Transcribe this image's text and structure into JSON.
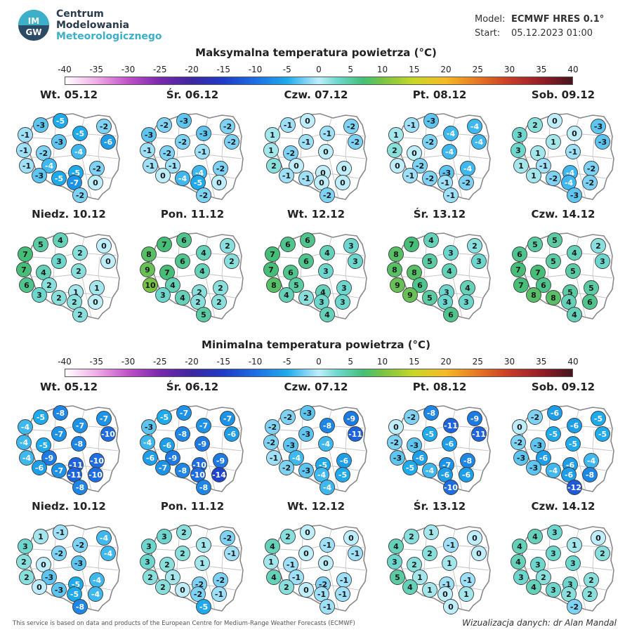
{
  "header": {
    "org_line1": "Centrum",
    "org_line2": "Modelowania",
    "org_line3": "Meteorologicznego",
    "logo_text_top": "IM",
    "logo_text_bottom": "GW",
    "model_label": "Model:",
    "model_value": "ECMWF HRES 0.1°",
    "start_label": "Start:",
    "start_value": "05.12.2023 01:00"
  },
  "scale_ticks": [
    "-40",
    "-35",
    "-30",
    "-25",
    "-20",
    "-15",
    "-10",
    "-5",
    "0",
    "5",
    "10",
    "15",
    "20",
    "25",
    "30",
    "35",
    "40"
  ],
  "max_section": {
    "title": "Maksymalna temperatura powietrza (°C)",
    "days": [
      {
        "title": "Wt. 05.12",
        "values": [
          -3,
          -5,
          -2,
          -1,
          -3,
          -5,
          -6,
          -1,
          -2,
          -4,
          -1,
          -4,
          -5,
          -2,
          -3,
          -5,
          -7,
          0,
          -2
        ]
      },
      {
        "title": "Śr. 06.12",
        "values": [
          -2,
          -3,
          -2,
          -3,
          -2,
          -3,
          -2,
          -1,
          -2,
          -1,
          -1,
          -1,
          -4,
          -2,
          0,
          -4,
          -5,
          0,
          -2
        ]
      },
      {
        "title": "Czw. 07.12",
        "values": [
          -1,
          0,
          -2,
          1,
          -1,
          -1,
          -2,
          1,
          -2,
          0,
          2,
          0,
          0,
          0,
          -1,
          -1,
          0,
          0,
          -2
        ]
      },
      {
        "title": "Pt. 08.12",
        "values": [
          -1,
          -3,
          -4,
          1,
          -2,
          -4,
          -4,
          2,
          0,
          -4,
          0,
          -2,
          -3,
          -4,
          -1,
          -2,
          -1,
          -2,
          -1
        ]
      },
      {
        "title": "Sob. 09.12",
        "values": [
          2,
          0,
          -3,
          3,
          1,
          0,
          -3,
          3,
          1,
          -1,
          1,
          -1,
          -4,
          -2,
          1,
          -2,
          -4,
          -2,
          -3
        ]
      },
      {
        "title": "Niedz. 10.12",
        "values": [
          5,
          4,
          0,
          7,
          3,
          2,
          0,
          7,
          4,
          2,
          6,
          2,
          1,
          1,
          3,
          2,
          2,
          0,
          2
        ]
      },
      {
        "title": "Pon. 11.12",
        "values": [
          7,
          6,
          2,
          8,
          6,
          4,
          2,
          9,
          7,
          4,
          10,
          4,
          2,
          2,
          3,
          4,
          2,
          2,
          5
        ]
      },
      {
        "title": "Wt. 12.12",
        "values": [
          6,
          6,
          3,
          7,
          6,
          4,
          3,
          7,
          6,
          3,
          8,
          5,
          4,
          3,
          4,
          2,
          3,
          3,
          4
        ]
      },
      {
        "title": "Śr. 13.12",
        "values": [
          7,
          4,
          2,
          8,
          5,
          3,
          3,
          8,
          8,
          4,
          9,
          6,
          3,
          4,
          9,
          5,
          3,
          3,
          6
        ]
      },
      {
        "title": "Czw. 14.12",
        "values": [
          5,
          5,
          2,
          6,
          5,
          4,
          3,
          7,
          7,
          5,
          7,
          6,
          5,
          5,
          8,
          8,
          4,
          6,
          4
        ]
      }
    ]
  },
  "min_section": {
    "title": "Minimalna temperatura powietrza (°C)",
    "days": [
      {
        "title": "Wt. 05.12",
        "values": [
          -5,
          -8,
          -7,
          -4,
          -7,
          -7,
          -10,
          -4,
          -5,
          -8,
          -4,
          -9,
          -11,
          -10,
          -6,
          -7,
          -11,
          -10,
          -8
        ]
      },
      {
        "title": "Śr. 06.12",
        "values": [
          -5,
          -7,
          -7,
          -3,
          -8,
          -7,
          -6,
          -4,
          -6,
          -9,
          -6,
          -9,
          -10,
          -9,
          -7,
          -8,
          -10,
          -14,
          -8
        ]
      },
      {
        "title": "Czw. 07.12",
        "values": [
          -2,
          -3,
          -9,
          -2,
          -3,
          -8,
          -11,
          -2,
          -3,
          -4,
          -1,
          -4,
          -5,
          -6,
          -2,
          -3,
          -4,
          -5,
          -4
        ]
      },
      {
        "title": "Pt. 08.12",
        "values": [
          -2,
          -8,
          -9,
          0,
          -5,
          -11,
          -11,
          -2,
          -3,
          -6,
          -3,
          -6,
          -7,
          -8,
          -5,
          -4,
          -6,
          -6,
          -10
        ]
      },
      {
        "title": "Sob. 09.12",
        "values": [
          -2,
          -6,
          -5,
          0,
          -5,
          -6,
          -5,
          -2,
          -3,
          -5,
          -3,
          -6,
          -6,
          -4,
          -3,
          -4,
          -6,
          -8,
          -12
        ]
      },
      {
        "title": "Niedz. 10.12",
        "values": [
          1,
          -1,
          -4,
          3,
          -2,
          -2,
          -4,
          2,
          0,
          -3,
          2,
          -3,
          -5,
          -4,
          0,
          -3,
          -5,
          -4,
          -8
        ]
      },
      {
        "title": "Pon. 11.12",
        "values": [
          3,
          2,
          -2,
          3,
          2,
          1,
          -1,
          3,
          2,
          1,
          2,
          1,
          -2,
          -2,
          2,
          0,
          -2,
          -1,
          -5
        ]
      },
      {
        "title": "Wt. 12.12",
        "values": [
          2,
          0,
          0,
          4,
          0,
          -1,
          -1,
          1,
          -1,
          0,
          4,
          -1,
          -2,
          -1,
          2,
          0,
          -1,
          -1,
          -1
        ]
      },
      {
        "title": "Śr. 13.12",
        "values": [
          2,
          1,
          0,
          4,
          2,
          -1,
          0,
          3,
          2,
          1,
          5,
          1,
          -1,
          -1,
          4,
          1,
          0,
          1,
          0
        ]
      },
      {
        "title": "Czw. 14.12",
        "values": [
          4,
          3,
          0,
          4,
          3,
          1,
          2,
          4,
          3,
          3,
          3,
          2,
          3,
          2,
          4,
          3,
          2,
          2,
          -2
        ]
      }
    ]
  },
  "footer": {
    "left": "This service is based on data and products of the European Centre for Medium-Range Weather Forecasts (ECMWF)",
    "right": "Wizualizacja danych: dr Alan Mandal"
  }
}
